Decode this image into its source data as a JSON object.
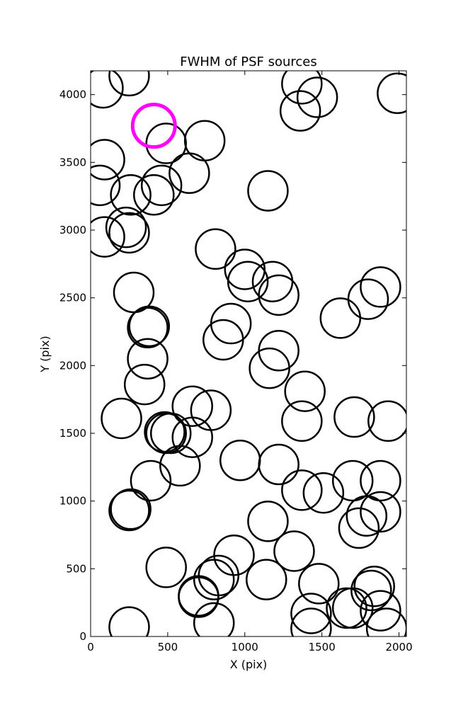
{
  "chart_data": {
    "type": "scatter",
    "title": "FWHM of PSF sources",
    "xlabel": "X (pix)",
    "ylabel": "Y (pix)",
    "xlim": [
      0,
      2048
    ],
    "ylim": [
      0,
      4176
    ],
    "xticks": [
      0,
      500,
      1000,
      1500,
      2000
    ],
    "yticks": [
      0,
      500,
      1000,
      1500,
      2000,
      2500,
      3000,
      3500,
      4000
    ],
    "marker": "open circle",
    "grid": false,
    "highlight": {
      "x": 410,
      "y": 3770,
      "color": "#ff00ff"
    },
    "points": [
      [
        80,
        4050
      ],
      [
        250,
        4140
      ],
      [
        1370,
        4080
      ],
      [
        1360,
        3880
      ],
      [
        1470,
        3980
      ],
      [
        1990,
        4010
      ],
      [
        490,
        3640
      ],
      [
        740,
        3660
      ],
      [
        90,
        3520
      ],
      [
        60,
        3330
      ],
      [
        640,
        3420
      ],
      [
        460,
        3330
      ],
      [
        260,
        3260
      ],
      [
        410,
        3260
      ],
      [
        1150,
        3290
      ],
      [
        230,
        3020
      ],
      [
        250,
        2980
      ],
      [
        90,
        2950
      ],
      [
        810,
        2860
      ],
      [
        1000,
        2710
      ],
      [
        1020,
        2620
      ],
      [
        1180,
        2620
      ],
      [
        1220,
        2520
      ],
      [
        1880,
        2580
      ],
      [
        1800,
        2490
      ],
      [
        1620,
        2350
      ],
      [
        280,
        2540
      ],
      [
        380,
        2290
      ],
      [
        370,
        2280
      ],
      [
        910,
        2310
      ],
      [
        860,
        2190
      ],
      [
        1220,
        2110
      ],
      [
        370,
        2050
      ],
      [
        1160,
        1980
      ],
      [
        350,
        1860
      ],
      [
        1390,
        1810
      ],
      [
        660,
        1700
      ],
      [
        780,
        1670
      ],
      [
        200,
        1610
      ],
      [
        1710,
        1620
      ],
      [
        1930,
        1590
      ],
      [
        1370,
        1590
      ],
      [
        480,
        1510
      ],
      [
        490,
        1500
      ],
      [
        520,
        1500
      ],
      [
        660,
        1470
      ],
      [
        970,
        1300
      ],
      [
        1220,
        1270
      ],
      [
        580,
        1260
      ],
      [
        390,
        1150
      ],
      [
        1700,
        1150
      ],
      [
        1880,
        1150
      ],
      [
        1370,
        1080
      ],
      [
        1510,
        1060
      ],
      [
        260,
        940
      ],
      [
        250,
        930
      ],
      [
        1790,
        890
      ],
      [
        1880,
        920
      ],
      [
        1740,
        800
      ],
      [
        1150,
        850
      ],
      [
        930,
        600
      ],
      [
        1320,
        630
      ],
      [
        490,
        510
      ],
      [
        830,
        450
      ],
      [
        800,
        420
      ],
      [
        1480,
        390
      ],
      [
        1140,
        420
      ],
      [
        1840,
        370
      ],
      [
        1820,
        340
      ],
      [
        700,
        300
      ],
      [
        700,
        290
      ],
      [
        1430,
        170
      ],
      [
        1660,
        210
      ],
      [
        1700,
        210
      ],
      [
        1880,
        190
      ],
      [
        1920,
        60
      ],
      [
        800,
        100
      ],
      [
        250,
        70
      ],
      [
        1430,
        60
      ]
    ]
  }
}
